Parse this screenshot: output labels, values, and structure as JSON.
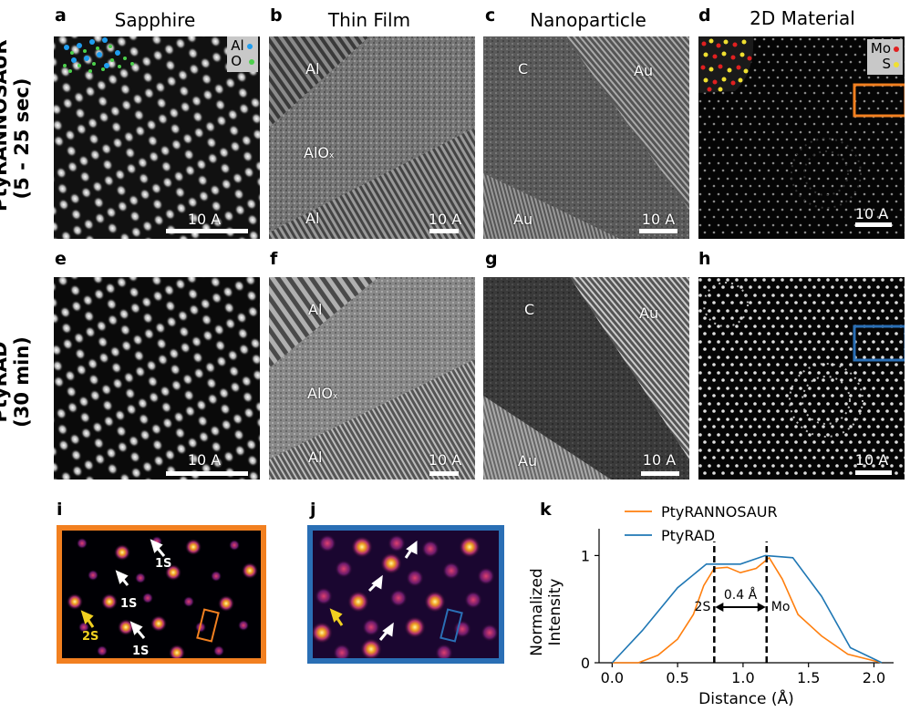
{
  "columns": [
    "Sapphire",
    "Thin Film",
    "Nanoparticle",
    "2D Material"
  ],
  "rows": [
    {
      "line1": "PtyRANNOSAUR",
      "line2": "(5 - 25 sec)"
    },
    {
      "line1": "PtyRAD",
      "line2": "(30 min)"
    }
  ],
  "panels": {
    "a": "a",
    "b": "b",
    "c": "c",
    "d": "d",
    "e": "e",
    "f": "f",
    "g": "g",
    "h": "h",
    "i": "i",
    "j": "j",
    "k": "k"
  },
  "scale_bar": "10 A",
  "sapphire_legend": {
    "al": "Al",
    "o": "O",
    "al_color": "#1f9df0",
    "o_color": "#4cd04c"
  },
  "mos2_legend": {
    "mo": "Mo",
    "s": "S",
    "mo_color": "#e02020",
    "s_color": "#f0e030"
  },
  "thin_film": {
    "top": "Al",
    "middle": "AlO",
    "middle_sub": "x",
    "bottom": "Al"
  },
  "nanoparticle": {
    "c": "C",
    "au_top": "Au",
    "au_bottom": "Au"
  },
  "zoom_labels": {
    "one_s": "1S",
    "two_s": "2S"
  },
  "box_colors": {
    "orange": "#f28020",
    "blue": "#2a6fb5"
  },
  "chart_data": {
    "type": "line",
    "xlabel": "Distance (Å)",
    "ylabel": "Normalized Intensity",
    "xlim": [
      -0.1,
      2.15
    ],
    "ylim": [
      0,
      1.25
    ],
    "xticks": [
      "0.0",
      "0.5",
      "1.0",
      "1.5",
      "2.0"
    ],
    "yticks": [
      "0",
      "1"
    ],
    "legend_position": "top",
    "series": [
      {
        "name": "PtyRANNOSAUR",
        "color": "#ff7f0e",
        "x": [
          0.0,
          0.2,
          0.35,
          0.5,
          0.62,
          0.7,
          0.78,
          0.88,
          0.98,
          1.1,
          1.2,
          1.3,
          1.42,
          1.6,
          1.8,
          2.06
        ],
        "y": [
          0.0,
          0.0,
          0.07,
          0.22,
          0.45,
          0.72,
          0.88,
          0.89,
          0.84,
          0.88,
          0.98,
          0.78,
          0.45,
          0.25,
          0.08,
          0.0
        ]
      },
      {
        "name": "PtyRAD",
        "color": "#1f77b4",
        "x": [
          0.0,
          0.23,
          0.5,
          0.72,
          0.88,
          0.98,
          1.17,
          1.38,
          1.6,
          1.82,
          2.06
        ],
        "y": [
          0.0,
          0.3,
          0.7,
          0.92,
          0.92,
          0.92,
          1.0,
          0.98,
          0.62,
          0.14,
          0.0
        ]
      }
    ],
    "annotations": [
      {
        "text": "2S",
        "x": 0.78
      },
      {
        "text": "Mo",
        "x": 1.18
      },
      {
        "text": "0.4 Å",
        "type": "double-arrow"
      }
    ]
  }
}
